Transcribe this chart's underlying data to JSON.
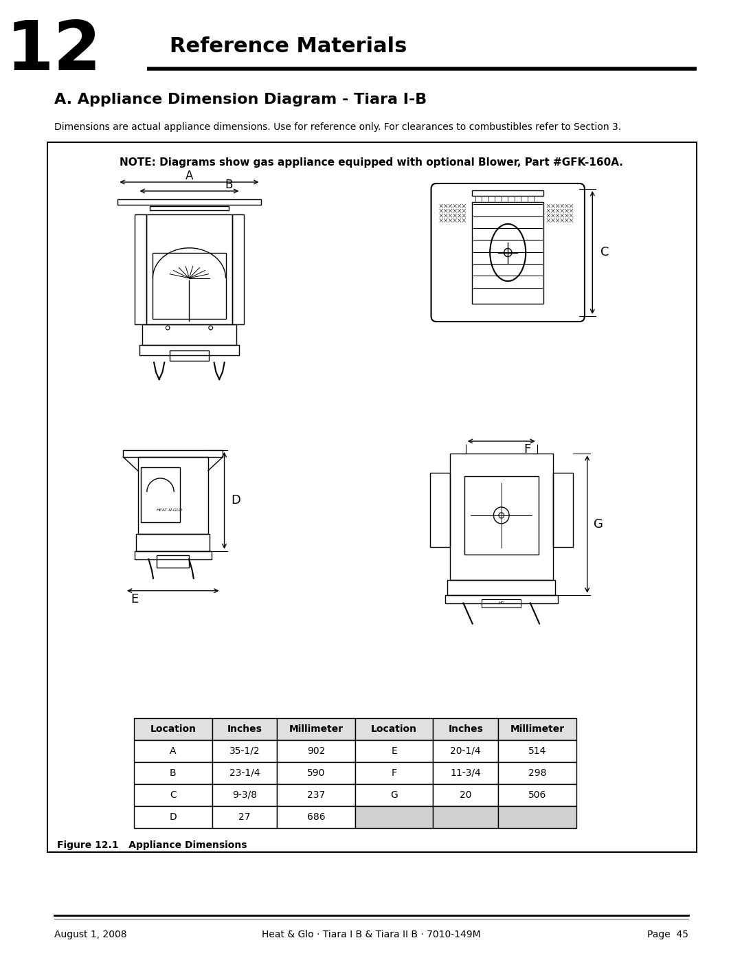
{
  "page_width": 10.8,
  "page_height": 13.97,
  "bg_color": "#ffffff",
  "chapter_number": "12",
  "chapter_title": "Reference Materials",
  "section_title": "A. Appliance Dimension Diagram - Tiara I-B",
  "dimensions_note": "Dimensions are actual appliance dimensions. Use for reference only. For clearances to combustibles refer to Section 3.",
  "box_note": "NOTE: Diagrams show gas appliance equipped with optional Blower, Part #GFK-160A.",
  "figure_caption": "Figure 12.1   Appliance Dimensions",
  "footer_left": "August 1, 2008",
  "footer_center": "Heat & Glo · Tiara I B & Tiara II B · 7010-149M",
  "footer_right": "Page  45",
  "table_headers": [
    "Location",
    "Inches",
    "Millimeter",
    "Location",
    "Inches",
    "Millimeter"
  ],
  "table_rows": [
    [
      "A",
      "35-1/2",
      "902",
      "E",
      "20-1/4",
      "514"
    ],
    [
      "B",
      "23-1/4",
      "590",
      "F",
      "11-3/4",
      "298"
    ],
    [
      "C",
      "9-3/8",
      "237",
      "G",
      "20",
      "506"
    ],
    [
      "D",
      "27",
      "686",
      "",
      "",
      ""
    ]
  ],
  "table_last_row_bg": "#d0d0d0"
}
